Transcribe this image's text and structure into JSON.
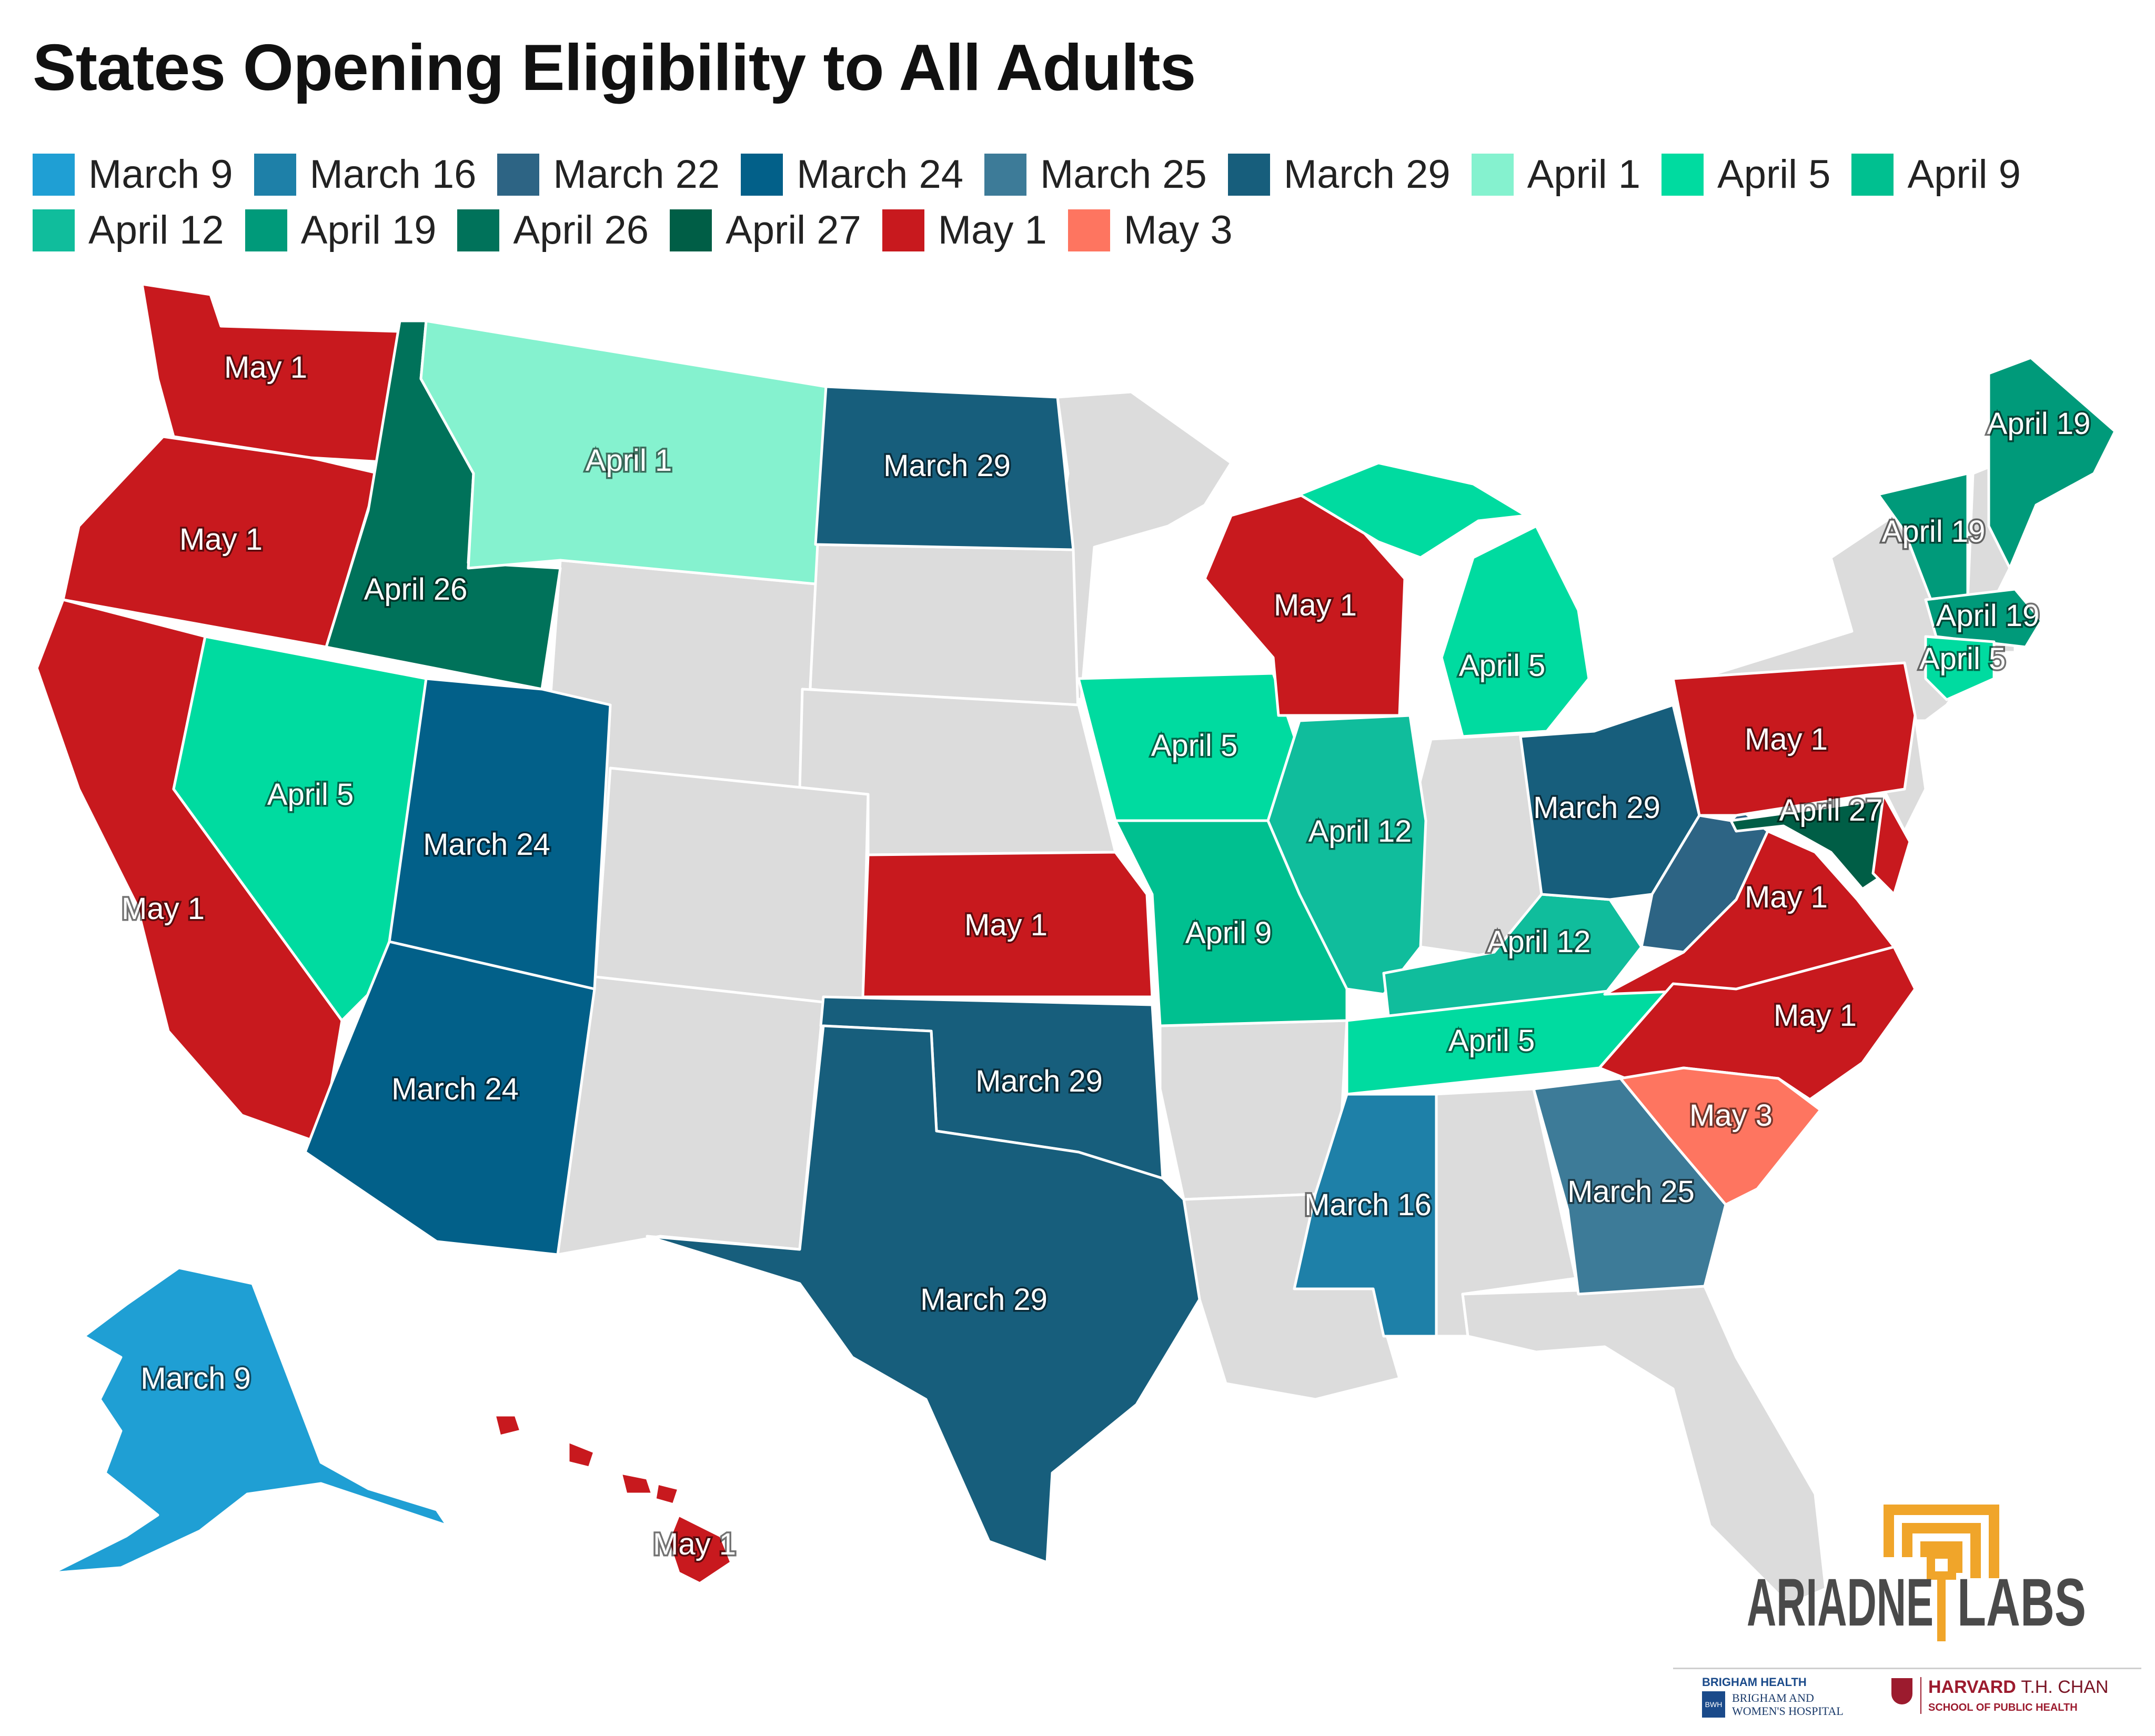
{
  "title": "States Opening Eligibility to All Adults",
  "legend": [
    {
      "label": "March 9",
      "color": "#1f9fd4"
    },
    {
      "label": "March 16",
      "color": "#1e80a8"
    },
    {
      "label": "March 22",
      "color": "#2d6484"
    },
    {
      "label": "March 24",
      "color": "#026089"
    },
    {
      "label": "March 25",
      "color": "#3d7b98"
    },
    {
      "label": "March 29",
      "color": "#175e7c"
    },
    {
      "label": "April 1",
      "color": "#85f2cf"
    },
    {
      "label": "April 5",
      "color": "#00dba0"
    },
    {
      "label": "April 9",
      "color": "#00c090"
    },
    {
      "label": "April 12",
      "color": "#10bd9c"
    },
    {
      "label": "April 19",
      "color": "#009a7a"
    },
    {
      "label": "April 26",
      "color": "#00725a"
    },
    {
      "label": "April 27",
      "color": "#005e46"
    },
    {
      "label": "May 1",
      "color": "#c8191e"
    },
    {
      "label": "May 3",
      "color": "#fe7560"
    }
  ],
  "no_data_color": "#dcdcdc",
  "states": [
    {
      "state": "WA",
      "date": "May 1"
    },
    {
      "state": "OR",
      "date": "May 1"
    },
    {
      "state": "CA",
      "date": "May 1"
    },
    {
      "state": "ID",
      "date": "April 26"
    },
    {
      "state": "NV",
      "date": "April 5"
    },
    {
      "state": "MT",
      "date": "April 1"
    },
    {
      "state": "UT",
      "date": "March 24"
    },
    {
      "state": "AZ",
      "date": "March 24"
    },
    {
      "state": "ND",
      "date": "March 29"
    },
    {
      "state": "KS",
      "date": "May 1"
    },
    {
      "state": "OK",
      "date": "March 29"
    },
    {
      "state": "TX",
      "date": "March 29"
    },
    {
      "state": "IA",
      "date": "April 5"
    },
    {
      "state": "MO",
      "date": "April 9"
    },
    {
      "state": "WI",
      "date": "May 1"
    },
    {
      "state": "MI",
      "date": "April 5"
    },
    {
      "state": "IL",
      "date": "April 12"
    },
    {
      "state": "KY",
      "date": "April 12"
    },
    {
      "state": "TN",
      "date": "April 5"
    },
    {
      "state": "MS",
      "date": "March 16"
    },
    {
      "state": "OH",
      "date": "March 29"
    },
    {
      "state": "WV",
      "date": "March 22"
    },
    {
      "state": "PA",
      "date": "May 1"
    },
    {
      "state": "VA",
      "date": "May 1"
    },
    {
      "state": "NC",
      "date": "May 1"
    },
    {
      "state": "SC",
      "date": "May 3"
    },
    {
      "state": "GA",
      "date": "March 25"
    },
    {
      "state": "MD",
      "date": "April 27"
    },
    {
      "state": "DE",
      "date": "May 1"
    },
    {
      "state": "ME",
      "date": "April 19"
    },
    {
      "state": "VT",
      "date": "April 19"
    },
    {
      "state": "MA",
      "date": "April 19"
    },
    {
      "state": "CT",
      "date": "April 5"
    },
    {
      "state": "AK",
      "date": "March 9"
    },
    {
      "state": "HI",
      "date": "May 1"
    }
  ],
  "map_labels": [
    "May 1",
    "May 1",
    "May 1",
    "April 26",
    "April 5",
    "April 1",
    "March 24",
    "March 24",
    "March 29",
    "May 1",
    "March 29",
    "March 29",
    "April 5",
    "April 9",
    "May 1",
    "April 5",
    "April 12",
    "April 12",
    "April 5",
    "March 16",
    "March 29",
    "April 27",
    "May 1",
    "May 1",
    "May 1",
    "May 3",
    "March 25",
    "April 19",
    "April 19",
    "April 19",
    "April 5",
    "March 9",
    "May 1"
  ],
  "footer": {
    "brand": "ARIADNE LABS",
    "brand_left": "ARIADNE",
    "brand_right": "LABS",
    "brigham_top": "BRIGHAM HEALTH",
    "brigham_line1": "BRIGHAM AND",
    "brigham_line2": "WOMEN'S HOSPITAL",
    "bwh_mark": "BWH",
    "harvard_bold": "HARVARD",
    "harvard_rest": "T.H. CHAN",
    "harvard_sub": "SCHOOL OF PUBLIC HEALTH"
  }
}
